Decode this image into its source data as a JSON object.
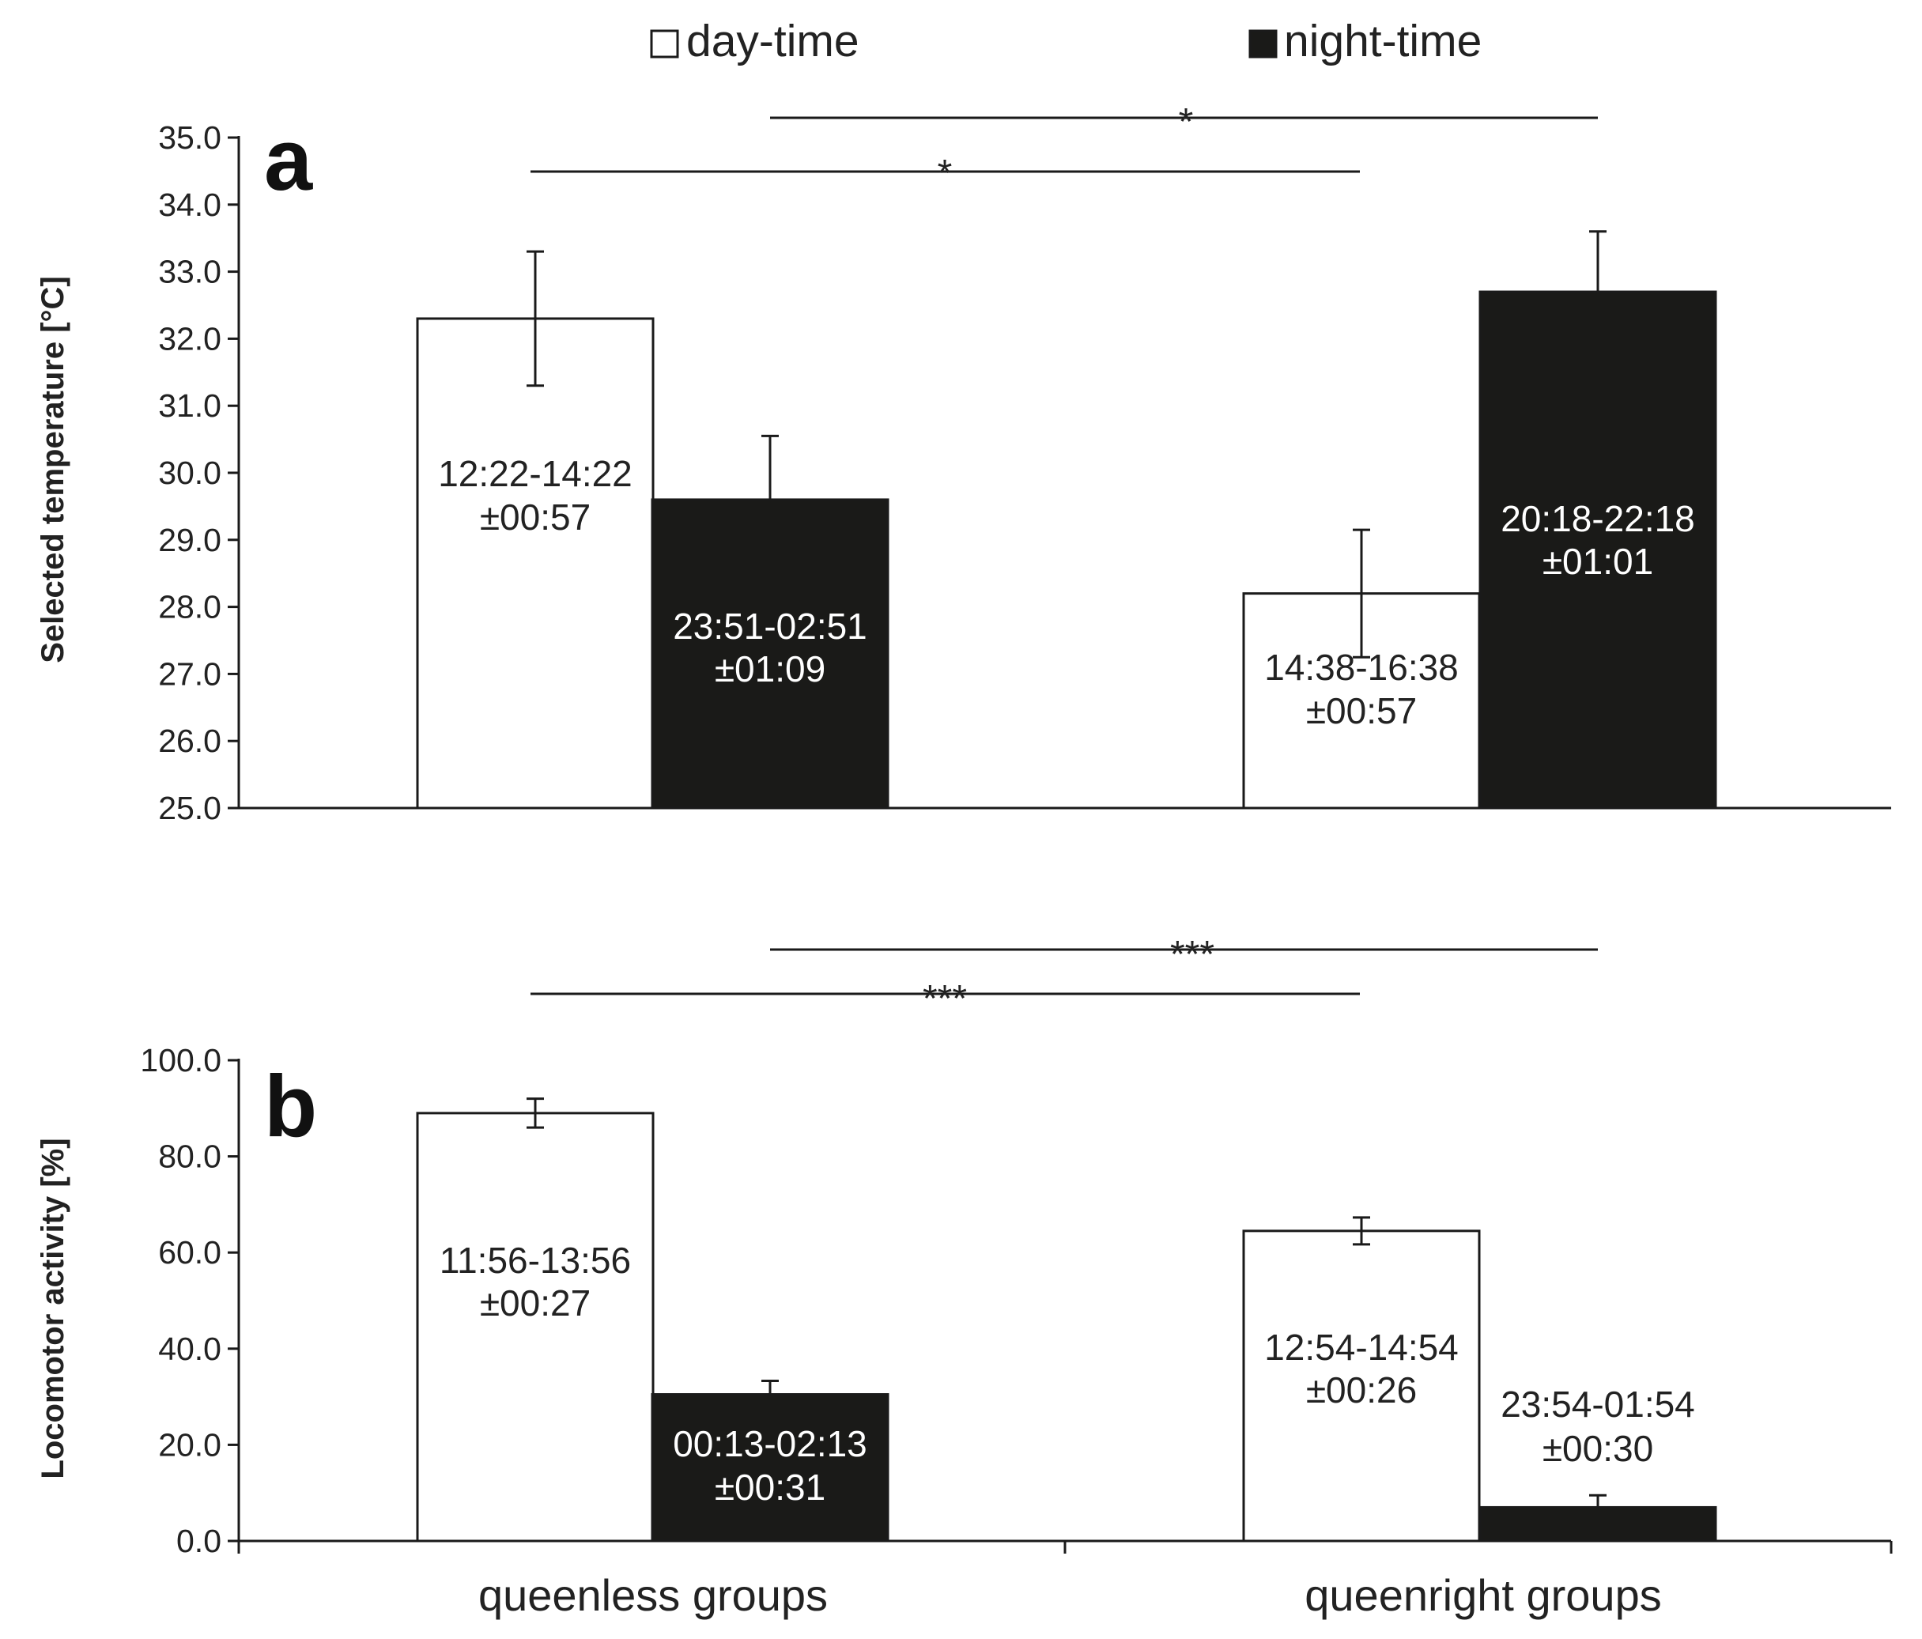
{
  "legend": {
    "day_label": "day-time",
    "night_label": "night-time"
  },
  "colors": {
    "day_fill": "#ffffff",
    "night_fill": "#1a1a18",
    "stroke": "#1a1a1a",
    "day_text": "#222222",
    "night_text": "#ffffff"
  },
  "chart_data": [
    {
      "type": "bar",
      "panel_letter": "a",
      "ylabel": "Selected temperature [°C]",
      "ylim": [
        25.0,
        35.0
      ],
      "yticks": [
        "25.0",
        "26.0",
        "27.0",
        "28.0",
        "29.0",
        "30.0",
        "31.0",
        "32.0",
        "33.0",
        "34.0",
        "35.0"
      ],
      "grid": false,
      "categories": [
        "queenless groups",
        "queenright groups"
      ],
      "series": [
        {
          "name": "day-time",
          "values": [
            32.3,
            28.2
          ],
          "errors": [
            1.0,
            0.95
          ],
          "labels": [
            [
              "12:22-14:22",
              "±00:57"
            ],
            [
              "14:38-16:38",
              "±00:57"
            ]
          ]
        },
        {
          "name": "night-time",
          "values": [
            29.6,
            32.7
          ],
          "errors": [
            0.95,
            0.9
          ],
          "labels": [
            [
              "23:51-02:51",
              "±01:09"
            ],
            [
              "20:18-22:18",
              "±01:01"
            ]
          ]
        }
      ],
      "significance": [
        {
          "from": [
            0,
            0
          ],
          "to": [
            1,
            0
          ],
          "text": "*"
        },
        {
          "from": [
            0,
            1
          ],
          "to": [
            1,
            1
          ],
          "text": "*"
        }
      ]
    },
    {
      "type": "bar",
      "panel_letter": "b",
      "ylabel": "Locomotor activity [%]",
      "ylim": [
        0.0,
        100.0
      ],
      "yticks": [
        "0.0",
        "20.0",
        "40.0",
        "60.0",
        "80.0",
        "100.0"
      ],
      "grid": false,
      "categories": [
        "queenless groups",
        "queenright groups"
      ],
      "series": [
        {
          "name": "day-time",
          "values": [
            89.0,
            64.5
          ],
          "errors": [
            3.0,
            2.8
          ],
          "labels": [
            [
              "11:56-13:56",
              "±00:27"
            ],
            [
              "12:54-14:54",
              "±00:26"
            ]
          ]
        },
        {
          "name": "night-time",
          "values": [
            30.5,
            7.0
          ],
          "errors": [
            2.8,
            2.5
          ],
          "labels": [
            [
              "00:13-02:13",
              "±00:31"
            ],
            [
              "23:54-01:54",
              "±00:30"
            ]
          ]
        }
      ],
      "significance": [
        {
          "from": [
            0,
            0
          ],
          "to": [
            1,
            0
          ],
          "text": "***"
        },
        {
          "from": [
            0,
            1
          ],
          "to": [
            1,
            1
          ],
          "text": "***"
        }
      ]
    }
  ]
}
